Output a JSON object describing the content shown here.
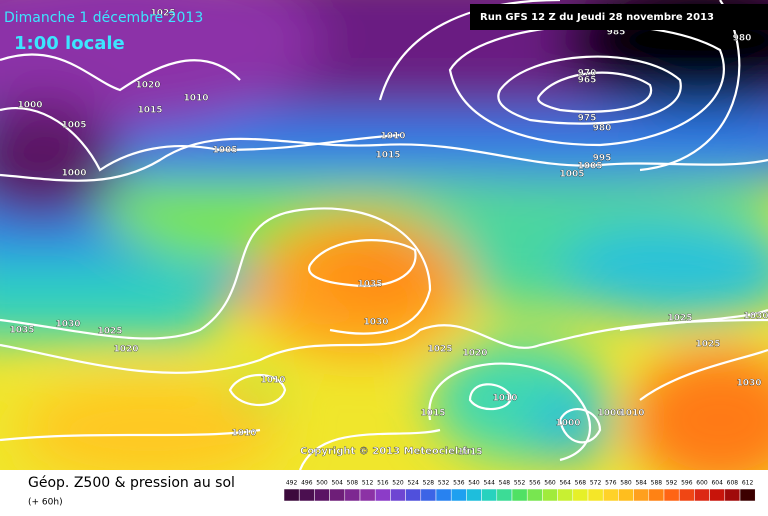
{
  "header": {
    "date": "Dimanche 1 décembre 2013",
    "time": "1:00 locale",
    "run": "Run GFS 12 Z du Jeudi 28 novembre 2013"
  },
  "copyright": "Copyright © 2013 Meteociel.fr",
  "isobar_labels": [
    1025,
    1020,
    1015,
    1010,
    1000,
    1005,
    1000,
    1005,
    990,
    985,
    980,
    970,
    965,
    975,
    980,
    995,
    1005,
    1010,
    1015,
    1005,
    1035,
    1030,
    1035,
    1030,
    1025,
    1020,
    1025,
    1020,
    1010,
    1010,
    1015,
    1010,
    1000,
    1000,
    1010,
    1025,
    1025,
    1030,
    1030,
    1015
  ],
  "footer": {
    "title": "Géop. Z500 & pression au sol",
    "lead": "(+ 60h)"
  },
  "colorbar": {
    "labels": [
      492,
      496,
      500,
      504,
      508,
      512,
      516,
      520,
      524,
      528,
      532,
      536,
      540,
      544,
      548,
      552,
      556,
      560,
      564,
      568,
      572,
      576,
      580,
      584,
      588,
      592,
      596,
      600,
      604,
      608,
      612
    ],
    "colors": [
      "#3c0a3c",
      "#4b0f50",
      "#5a1464",
      "#6e1e78",
      "#7d2891",
      "#8c32a5",
      "#8c3cc8",
      "#6e46d2",
      "#5050dc",
      "#3c64e6",
      "#2882f0",
      "#1ea0f0",
      "#1ebedc",
      "#28d2be",
      "#3cdc96",
      "#50e164",
      "#78e650",
      "#a0eb3c",
      "#c8f032",
      "#e6f028",
      "#f5e628",
      "#ffd228",
      "#ffbe1e",
      "#ffa01e",
      "#ff8214",
      "#ff6414",
      "#f04614",
      "#dc2814",
      "#c8140a",
      "#a00a0a",
      "#3c0000"
    ]
  }
}
